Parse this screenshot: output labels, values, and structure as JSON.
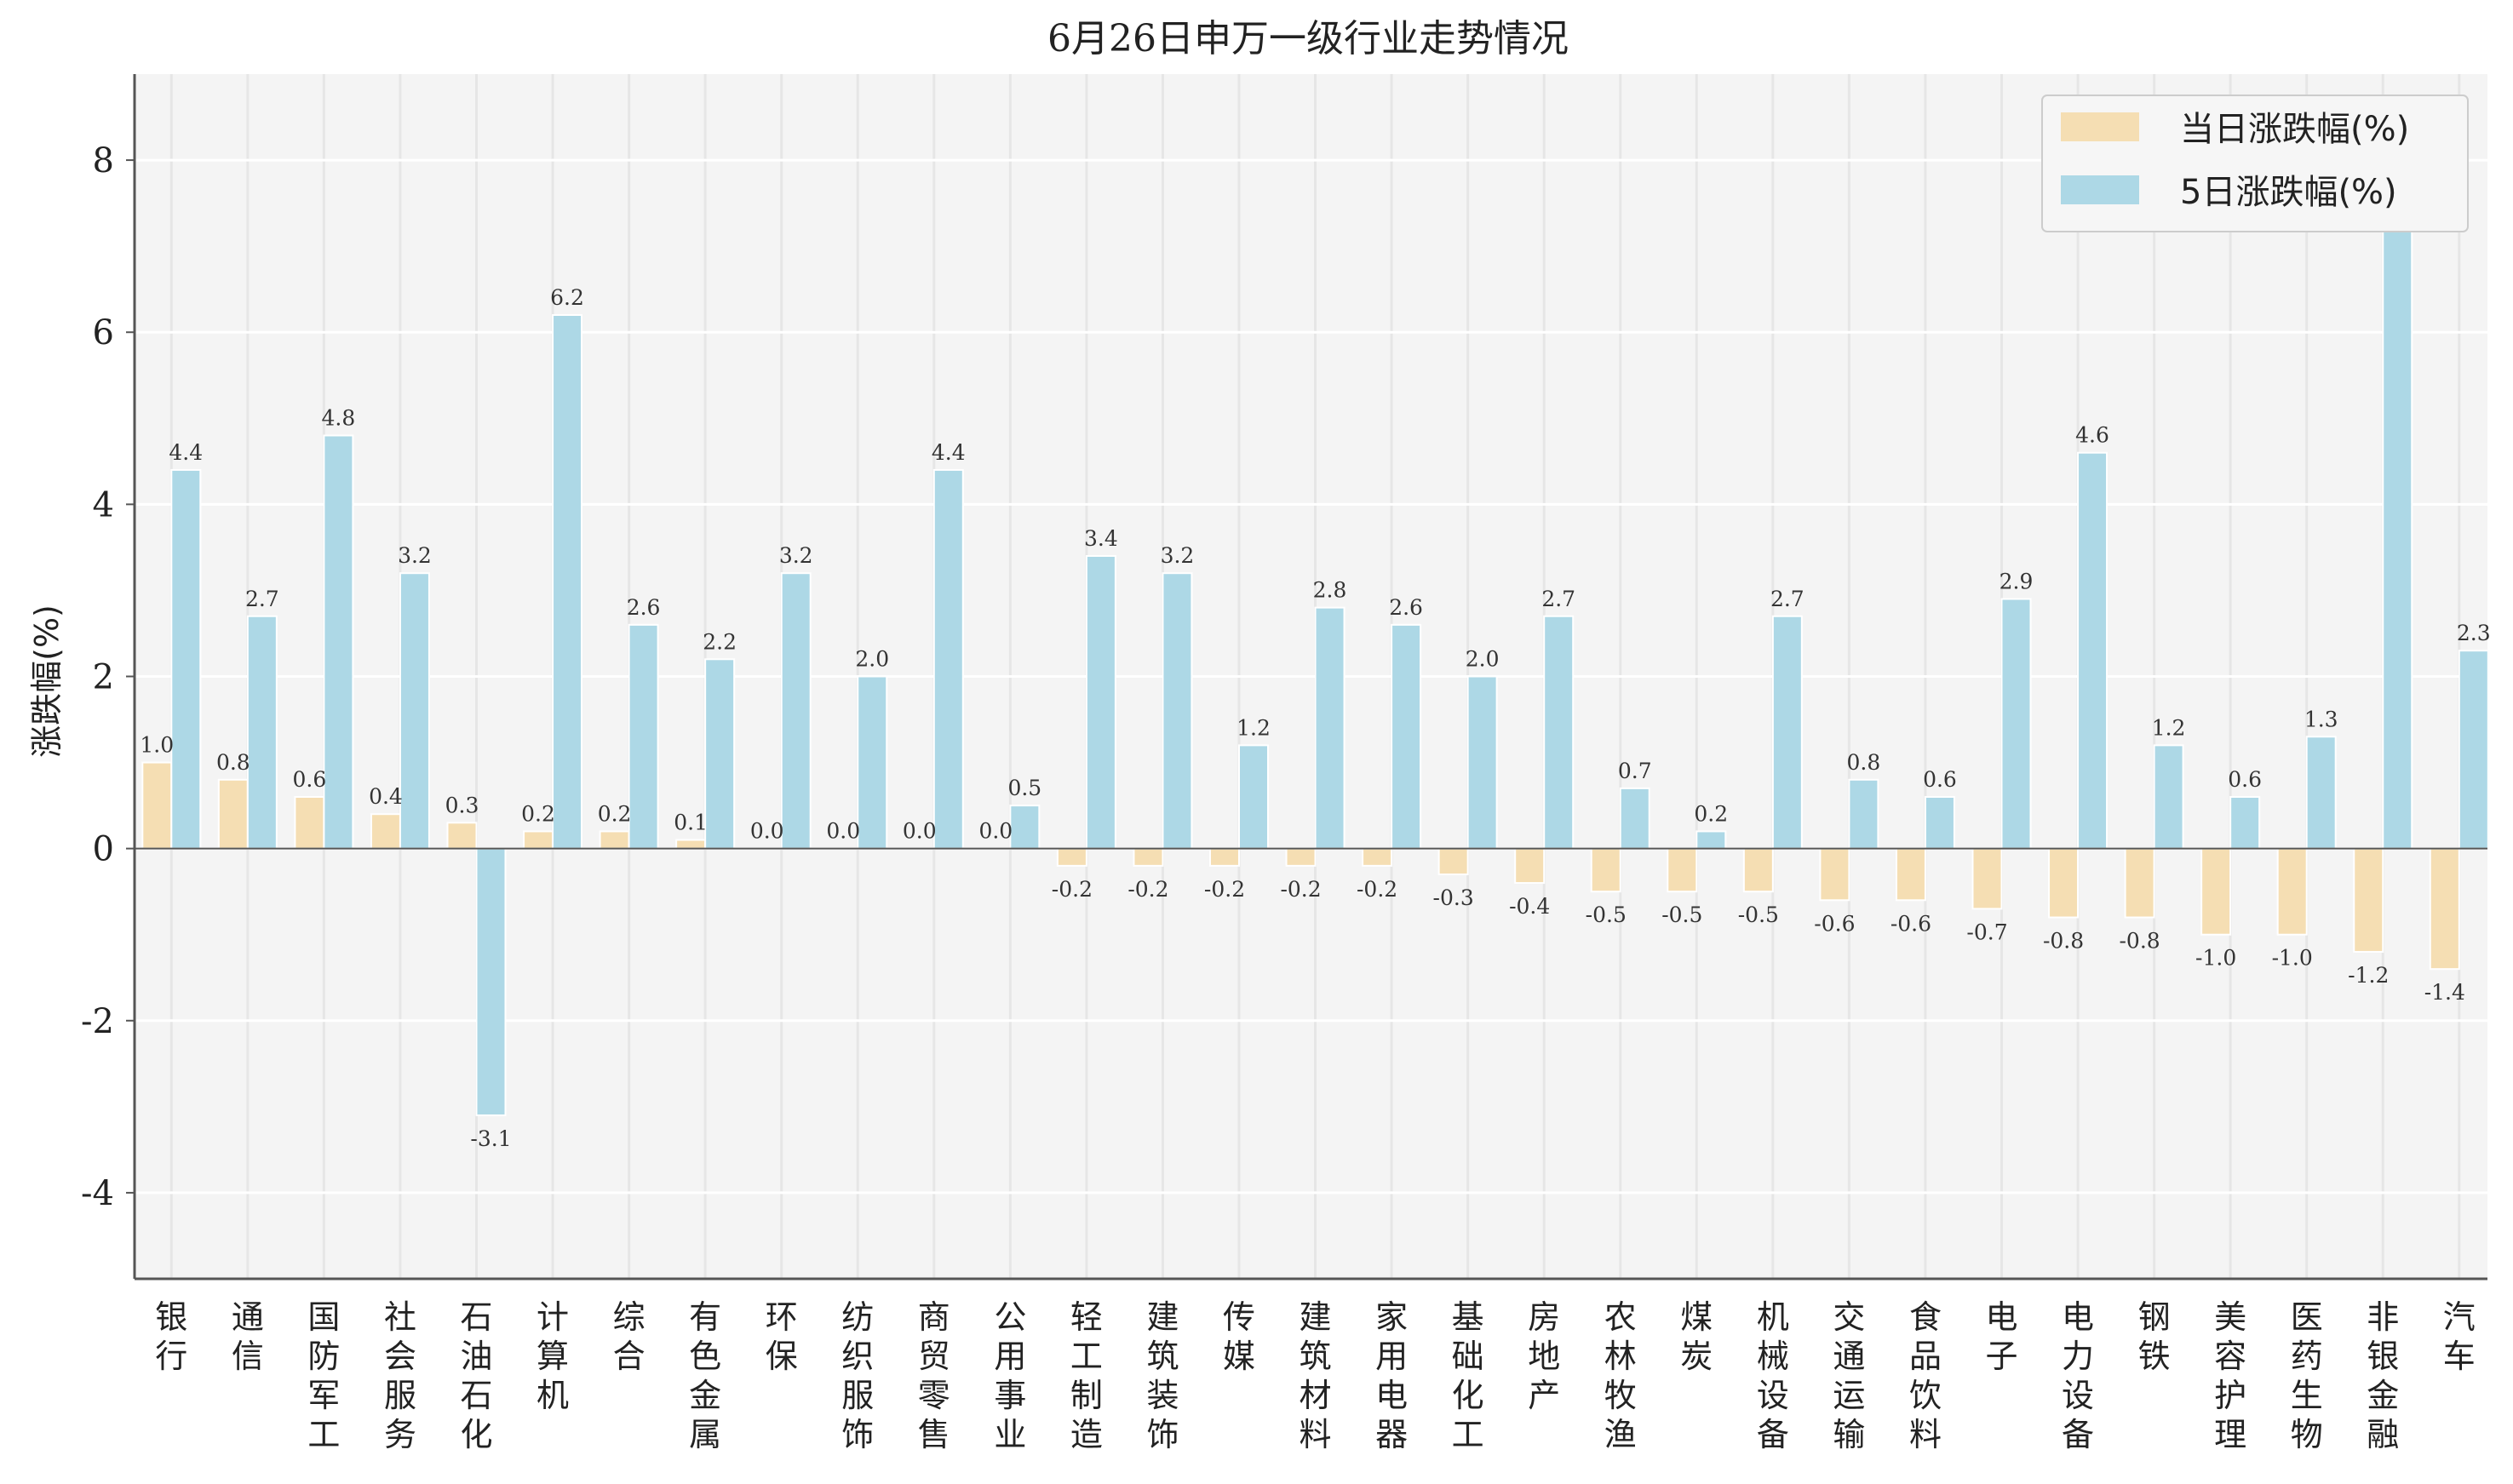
{
  "chart_data": {
    "type": "bar",
    "title": "6月26日申万一级行业走势情况",
    "ylabel": "涨跌幅(%)",
    "xlabel": "",
    "ylim": [
      -5,
      9
    ],
    "yticks": [
      -4,
      -2,
      0,
      2,
      4,
      6,
      8
    ],
    "ytick_labels": [
      "-4",
      "-2",
      "0",
      "2",
      "4",
      "6",
      "8"
    ],
    "grid": true,
    "legend_position": "top-right",
    "categories": [
      "银行",
      "通信",
      "国防军工",
      "社会服务",
      "石油石化",
      "计算机",
      "综合",
      "有色金属",
      "环保",
      "纺织服饰",
      "商贸零售",
      "公用事业",
      "轻工制造",
      "建筑装饰",
      "传媒",
      "建筑材料",
      "家用电器",
      "基础化工",
      "房地产",
      "农林牧渔",
      "煤炭",
      "机械设备",
      "交通运输",
      "食品饮料",
      "电子",
      "电力设备",
      "钢铁",
      "美容护理",
      "医药生物",
      "非银金融",
      "汽车"
    ],
    "series": [
      {
        "name": "当日涨跌幅(%)",
        "color": "#f5deb3",
        "values": [
          1.0,
          0.8,
          0.6,
          0.4,
          0.3,
          0.2,
          0.2,
          0.1,
          0.0,
          0.0,
          0.0,
          0.0,
          -0.2,
          -0.2,
          -0.2,
          -0.2,
          -0.2,
          -0.3,
          -0.4,
          -0.5,
          -0.5,
          -0.5,
          -0.6,
          -0.6,
          -0.7,
          -0.8,
          -0.8,
          -1.0,
          -1.0,
          -1.2,
          -1.4
        ],
        "labels": [
          "1.0",
          "0.8",
          "0.6",
          "0.4",
          "0.3",
          "0.2",
          "0.2",
          "0.1",
          "0.0",
          "0.0",
          "0.0",
          "0.0",
          "-0.2",
          "-0.2",
          "-0.2",
          "-0.2",
          "-0.2",
          "-0.3",
          "-0.4",
          "-0.5",
          "-0.5",
          "-0.5",
          "-0.6",
          "-0.6",
          "-0.7",
          "-0.8",
          "-0.8",
          "-1.0",
          "-1.0",
          "-1.2",
          "-1.4"
        ]
      },
      {
        "name": "5日涨跌幅(%)",
        "color": "#add8e6",
        "values": [
          4.4,
          2.7,
          4.8,
          3.2,
          -3.1,
          6.2,
          2.6,
          2.2,
          3.2,
          2.0,
          4.4,
          0.5,
          3.4,
          3.2,
          1.2,
          2.8,
          2.6,
          2.0,
          2.7,
          0.7,
          0.2,
          2.7,
          0.8,
          0.6,
          2.9,
          4.6,
          1.2,
          0.6,
          1.3,
          7.7,
          2.3
        ],
        "labels": [
          "4.4",
          "2.7",
          "4.8",
          "3.2",
          "-3.1",
          "6.2",
          "2.6",
          "2.2",
          "3.2",
          "2.0",
          "4.4",
          "0.5",
          "3.4",
          "3.2",
          "1.2",
          "2.8",
          "2.6",
          "2.0",
          "2.7",
          "0.7",
          "0.2",
          "2.7",
          "0.8",
          "0.6",
          "2.9",
          "4.6",
          "1.2",
          "0.6",
          "1.3",
          "7.7",
          "2.3"
        ]
      }
    ]
  }
}
